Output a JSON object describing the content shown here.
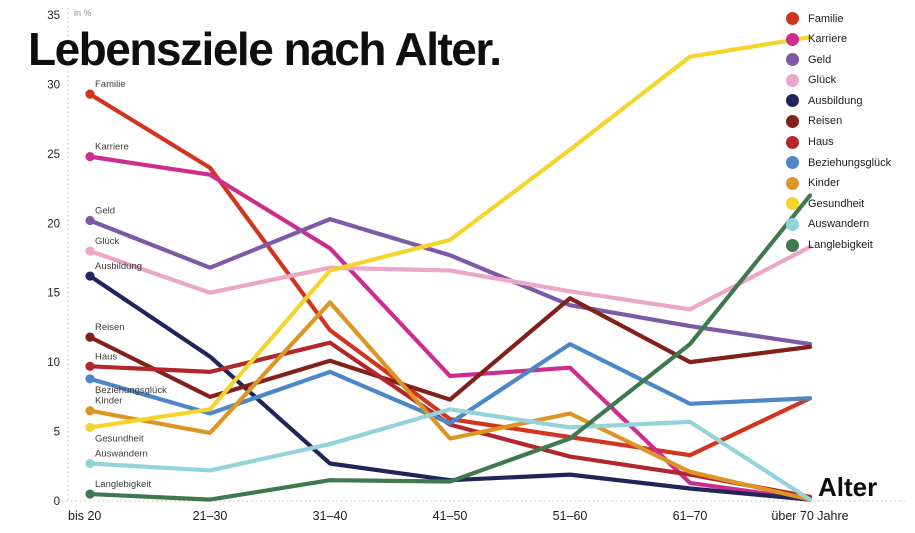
{
  "chart_data": {
    "type": "line",
    "title": "Lebensziele nach Alter.",
    "unit_label": "in %",
    "xlabel": "Alter",
    "ylim": [
      0,
      35
    ],
    "yticks": [
      0,
      5,
      10,
      15,
      20,
      25,
      30,
      35
    ],
    "grid": "off",
    "legend_position": "top-right",
    "categories": [
      "bis 20",
      "21–30",
      "31–40",
      "41–50",
      "51–60",
      "61–70",
      "über 70 Jahre"
    ],
    "series": [
      {
        "name": "Familie",
        "color": "#d2351f",
        "label_below": false,
        "values": [
          29.3,
          24.0,
          12.3,
          5.9,
          4.6,
          3.3,
          7.4
        ]
      },
      {
        "name": "Karriere",
        "color": "#cd2d8f",
        "label_below": false,
        "values": [
          24.8,
          23.5,
          18.2,
          9.0,
          9.6,
          1.3,
          0.1
        ]
      },
      {
        "name": "Geld",
        "color": "#7d5aa6",
        "label_below": false,
        "values": [
          20.2,
          16.8,
          20.3,
          17.7,
          14.1,
          12.6,
          11.3
        ]
      },
      {
        "name": "Glück",
        "color": "#eba6c8",
        "label_below": false,
        "values": [
          18.0,
          15.0,
          16.8,
          16.6,
          15.1,
          13.8,
          18.3
        ]
      },
      {
        "name": "Ausbildung",
        "color": "#20265a",
        "label_below": false,
        "values": [
          16.2,
          10.4,
          2.7,
          1.5,
          1.9,
          0.9,
          0.1
        ]
      },
      {
        "name": "Reisen",
        "color": "#82211a",
        "label_below": false,
        "values": [
          11.8,
          7.5,
          10.1,
          7.3,
          14.6,
          10.0,
          11.1
        ]
      },
      {
        "name": "Haus",
        "color": "#b2272c",
        "label_below": false,
        "values": [
          9.7,
          9.3,
          11.4,
          5.5,
          3.2,
          1.9,
          0.3
        ]
      },
      {
        "name": "Beziehungsglück",
        "color": "#4d87c7",
        "label_below": true,
        "values": [
          8.8,
          6.3,
          9.3,
          5.6,
          11.3,
          7.0,
          7.4
        ]
      },
      {
        "name": "Kinder",
        "color": "#dd9526",
        "label_below": false,
        "values": [
          6.5,
          4.9,
          14.3,
          4.5,
          6.3,
          2.1,
          0.1
        ]
      },
      {
        "name": "Gesundheit",
        "color": "#f5d42e",
        "label_below": true,
        "values": [
          5.3,
          6.6,
          16.6,
          18.8,
          25.3,
          32.0,
          33.4
        ]
      },
      {
        "name": "Auswandern",
        "color": "#94d3da",
        "label_below": false,
        "values": [
          2.7,
          2.2,
          4.1,
          6.6,
          5.3,
          5.7,
          0.1
        ]
      },
      {
        "name": "Langlebigkeit",
        "color": "#41794f",
        "label_below": false,
        "values": [
          0.5,
          0.1,
          1.5,
          1.4,
          4.5,
          11.3,
          22.0
        ]
      }
    ]
  }
}
